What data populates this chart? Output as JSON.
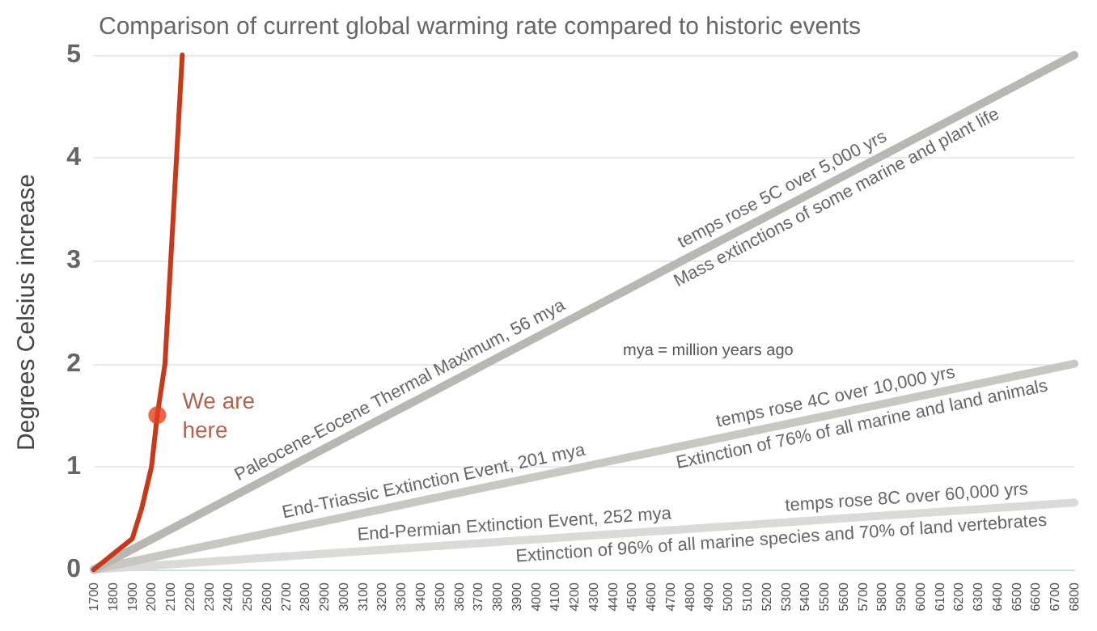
{
  "chart_data": {
    "type": "line",
    "title": "Comparison of current global warming rate compared to historic events",
    "ylabel": "Degrees Celsius increase",
    "xlim": [
      1700,
      6800
    ],
    "xticks": [
      1700,
      1800,
      1900,
      2000,
      2100,
      2200,
      2300,
      2400,
      2500,
      2600,
      2700,
      2800,
      2900,
      3000,
      3100,
      3200,
      3300,
      3400,
      3500,
      3600,
      3700,
      3800,
      3900,
      4000,
      4100,
      4200,
      4300,
      4400,
      4500,
      4600,
      4700,
      4800,
      4900,
      5000,
      5100,
      5200,
      5300,
      5400,
      5500,
      5600,
      5700,
      5800,
      5900,
      6000,
      6100,
      6200,
      6300,
      6400,
      6500,
      6600,
      6700,
      6800
    ],
    "ylim": [
      0,
      5
    ],
    "yticks": [
      0,
      1,
      2,
      3,
      4,
      5
    ],
    "grid": "y",
    "legend": false,
    "series": [
      {
        "color": "#dcdad6",
        "x": [
          1700,
          6800
        ],
        "values": [
          0,
          0.65
        ]
      },
      {
        "color": "#c9c7c2",
        "x": [
          1700,
          6800
        ],
        "values": [
          0,
          2.0
        ]
      },
      {
        "color": "#b9b7b2",
        "x": [
          1700,
          6800
        ],
        "values": [
          0,
          5
        ]
      },
      {
        "color": "#c8391a",
        "x": [
          1700,
          1800,
          1900,
          1950,
          2000,
          2030,
          2070,
          2100,
          2130,
          2160
        ],
        "values": [
          0,
          0.15,
          0.3,
          0.6,
          1,
          1.5,
          2,
          3,
          4,
          5
        ]
      },
      {
        "type": "scatter",
        "name": "We are here",
        "color": "#e2401c",
        "x": [
          2030
        ],
        "values": [
          1.5
        ]
      }
    ],
    "annotations": [
      "mya = million years ago",
      "Paleocene-Eocene Thermal Maximum, 56 mya",
      "temps rose 5C over 5,000 yrs",
      "Mass extinctions of some marine and plant life",
      "End-Triassic Extinction Event, 201 mya",
      "temps rose 4C over 10,000 yrs",
      "Extinction of 76% of all marine and land animals",
      "End-Permian Extinction Event, 252 mya",
      "temps rose 8C over 60,000 yrs",
      "Extinction of 96% of all marine species and 70% of land vertebrates"
    ]
  }
}
